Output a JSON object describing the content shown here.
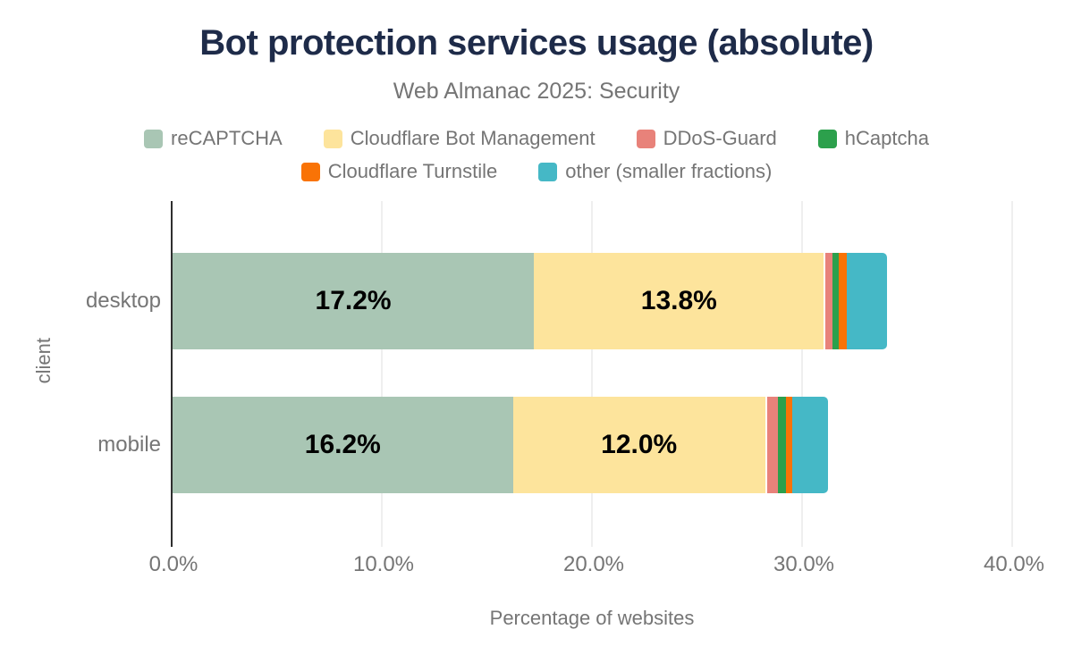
{
  "header": {
    "title": "Bot protection services usage (absolute)",
    "subtitle": "Web Almanac 2025: Security"
  },
  "chart_data": {
    "type": "bar",
    "orientation": "horizontal",
    "stacked": true,
    "title": "Bot protection services usage (absolute)",
    "subtitle": "Web Almanac 2025: Security",
    "categories": [
      "desktop",
      "mobile"
    ],
    "series": [
      {
        "name": "reCAPTCHA",
        "color": "#a9c6b4",
        "values": [
          17.2,
          16.2
        ],
        "labels": [
          "17.2%",
          "16.2%"
        ]
      },
      {
        "name": "Cloudflare Bot Management",
        "color": "#fde49c",
        "values": [
          13.8,
          12.0
        ],
        "labels": [
          "13.8%",
          "12.0%"
        ]
      },
      {
        "name": "DDoS-Guard",
        "color": "#e8827a",
        "values": [
          0.4,
          0.6
        ],
        "labels": [
          null,
          null
        ]
      },
      {
        "name": "hCaptcha",
        "color": "#2ca04c",
        "values": [
          0.3,
          0.4
        ],
        "labels": [
          null,
          null
        ]
      },
      {
        "name": "Cloudflare Turnstile",
        "color": "#f97306",
        "values": [
          0.4,
          0.3
        ],
        "labels": [
          null,
          null
        ]
      },
      {
        "name": "other (smaller fractions)",
        "color": "#45b8c6",
        "values": [
          1.9,
          1.7
        ],
        "labels": [
          null,
          null
        ]
      }
    ],
    "xlabel": "Percentage of websites",
    "ylabel": "client",
    "xlim": [
      0,
      40
    ],
    "x_ticks": [
      {
        "value": 0,
        "label": "0.0%"
      },
      {
        "value": 10,
        "label": "10.0%"
      },
      {
        "value": 20,
        "label": "20.0%"
      },
      {
        "value": 30,
        "label": "30.0%"
      },
      {
        "value": 40,
        "label": "40.0%"
      }
    ],
    "grid": "vertical",
    "legend_position": "top",
    "legend_row_split": [
      4,
      2
    ],
    "colors": {
      "title_text": "#1e2b49",
      "axis_text": "#757575",
      "axis_line": "#2f2f2f",
      "gridline": "#efefef",
      "data_label_text": "#000000"
    }
  }
}
